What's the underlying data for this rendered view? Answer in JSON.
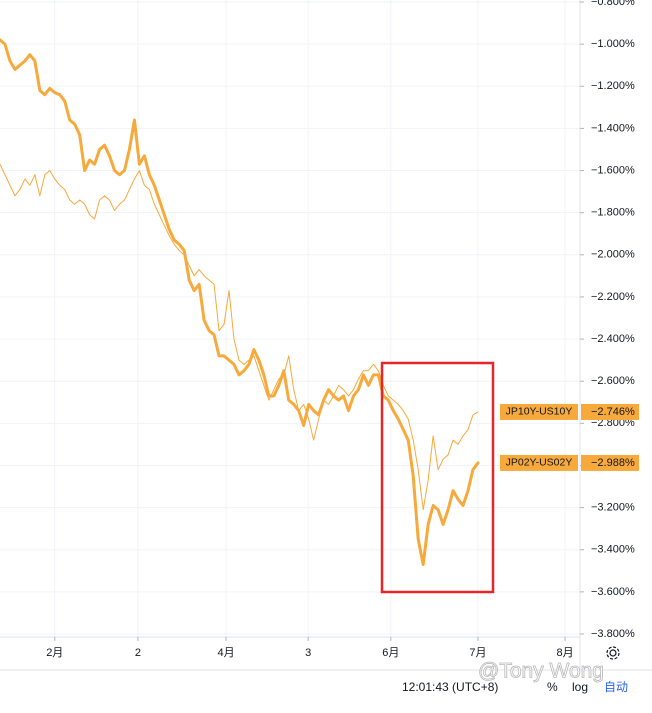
{
  "chart_data": {
    "type": "line",
    "x": [
      0,
      1,
      2,
      3,
      4,
      5,
      6,
      7,
      8,
      9,
      10,
      11,
      12,
      13,
      14,
      15,
      16,
      17,
      18,
      19,
      20,
      21,
      22,
      23,
      24,
      25,
      26,
      27,
      28,
      29,
      30,
      31,
      32,
      33,
      34,
      35,
      36,
      37,
      38,
      39,
      40,
      41,
      42,
      43,
      44,
      45,
      46,
      47,
      48,
      49,
      50,
      51,
      52,
      53,
      54,
      55,
      56,
      57,
      58,
      59,
      60,
      61,
      62,
      63,
      64,
      65,
      66,
      67,
      68,
      69,
      70,
      71,
      72,
      73,
      74,
      75,
      76,
      77,
      78,
      79,
      80,
      81,
      82,
      83,
      84,
      85,
      86,
      87,
      88,
      89,
      90,
      91,
      92,
      93,
      94,
      95,
      96
    ],
    "series": [
      {
        "name": "JP10Y-US10Y",
        "color": "#f7a93b",
        "line_width": 1,
        "values": [
          -1.57,
          -1.62,
          -1.67,
          -1.72,
          -1.69,
          -1.64,
          -1.67,
          -1.62,
          -1.72,
          -1.62,
          -1.6,
          -1.64,
          -1.67,
          -1.69,
          -1.74,
          -1.76,
          -1.74,
          -1.76,
          -1.81,
          -1.83,
          -1.74,
          -1.72,
          -1.74,
          -1.79,
          -1.76,
          -1.74,
          -1.69,
          -1.64,
          -1.6,
          -1.67,
          -1.69,
          -1.76,
          -1.81,
          -1.86,
          -1.91,
          -1.95,
          -1.98,
          -2.0,
          -2.05,
          -2.1,
          -2.07,
          -2.1,
          -2.12,
          -2.14,
          -2.36,
          -2.33,
          -2.17,
          -2.4,
          -2.5,
          -2.52,
          -2.5,
          -2.48,
          -2.55,
          -2.62,
          -2.69,
          -2.64,
          -2.59,
          -2.57,
          -2.48,
          -2.64,
          -2.74,
          -2.71,
          -2.78,
          -2.88,
          -2.78,
          -2.69,
          -2.71,
          -2.67,
          -2.62,
          -2.64,
          -2.67,
          -2.64,
          -2.59,
          -2.55,
          -2.55,
          -2.52,
          -2.55,
          -2.62,
          -2.67,
          -2.69,
          -2.71,
          -2.74,
          -2.78,
          -2.88,
          -3.02,
          -3.21,
          -3.07,
          -2.86,
          -3.02,
          -2.97,
          -2.95,
          -2.88,
          -2.9,
          -2.86,
          -2.83,
          -2.76,
          -2.746
        ],
        "last_label": "−2.746%"
      },
      {
        "name": "JP02Y-US02Y",
        "color": "#f7a93b",
        "line_width": 3,
        "values": [
          -0.98,
          -1.0,
          -1.08,
          -1.12,
          -1.1,
          -1.08,
          -1.05,
          -1.08,
          -1.22,
          -1.24,
          -1.21,
          -1.23,
          -1.24,
          -1.27,
          -1.36,
          -1.38,
          -1.43,
          -1.6,
          -1.55,
          -1.57,
          -1.5,
          -1.48,
          -1.53,
          -1.6,
          -1.62,
          -1.6,
          -1.5,
          -1.36,
          -1.57,
          -1.53,
          -1.62,
          -1.67,
          -1.74,
          -1.81,
          -1.88,
          -1.93,
          -1.95,
          -1.98,
          -2.12,
          -2.17,
          -2.14,
          -2.31,
          -2.36,
          -2.38,
          -2.48,
          -2.48,
          -2.5,
          -2.52,
          -2.57,
          -2.55,
          -2.52,
          -2.45,
          -2.5,
          -2.57,
          -2.67,
          -2.67,
          -2.62,
          -2.55,
          -2.69,
          -2.71,
          -2.74,
          -2.81,
          -2.71,
          -2.74,
          -2.76,
          -2.69,
          -2.64,
          -2.67,
          -2.69,
          -2.67,
          -2.74,
          -2.67,
          -2.64,
          -2.57,
          -2.62,
          -2.57,
          -2.57,
          -2.67,
          -2.69,
          -2.74,
          -2.78,
          -2.83,
          -2.88,
          -3.05,
          -3.35,
          -3.47,
          -3.28,
          -3.19,
          -3.21,
          -3.28,
          -3.21,
          -3.12,
          -3.16,
          -3.19,
          -3.12,
          -3.02,
          -2.988
        ],
        "last_label": "−2.988%"
      }
    ],
    "xlim": [
      0,
      116.5
    ],
    "xticks": [
      {
        "value": 11.0,
        "label": "2月"
      },
      {
        "value": 27.7,
        "label": "2"
      },
      {
        "value": 45.4,
        "label": "4月"
      },
      {
        "value": 61.9,
        "label": "3"
      },
      {
        "value": 78.5,
        "label": "6月"
      },
      {
        "value": 96,
        "label": "7月"
      },
      {
        "value": 113.5,
        "label": "8月"
      }
    ],
    "ylim": [
      -0.8,
      -3.8
    ],
    "yticks": [
      {
        "value": -0.8,
        "label": "−0.800%"
      },
      {
        "value": -1.0,
        "label": "−1.000%"
      },
      {
        "value": -1.2,
        "label": "−1.200%"
      },
      {
        "value": -1.4,
        "label": "−1.400%"
      },
      {
        "value": -1.6,
        "label": "−1.600%"
      },
      {
        "value": -1.8,
        "label": "−1.800%"
      },
      {
        "value": -2.0,
        "label": "−2.000%"
      },
      {
        "value": -2.2,
        "label": "−2.200%"
      },
      {
        "value": -2.4,
        "label": "−2.400%"
      },
      {
        "value": -2.6,
        "label": "−2.600%"
      },
      {
        "value": -2.8,
        "label": "−2.800%"
      },
      {
        "value": -3.0,
        "label": "−3.000%"
      },
      {
        "value": -3.2,
        "label": "−3.200%"
      },
      {
        "value": -3.4,
        "label": "−3.400%"
      },
      {
        "value": -3.6,
        "label": "−3.600%"
      },
      {
        "value": -3.8,
        "label": "−3.800%"
      }
    ],
    "grid": true,
    "watermark": "@Tony Wong",
    "toolbar": {
      "time": "12:01:43 (UTC+8)",
      "percent": "%",
      "log": "log",
      "auto": "自动"
    }
  }
}
